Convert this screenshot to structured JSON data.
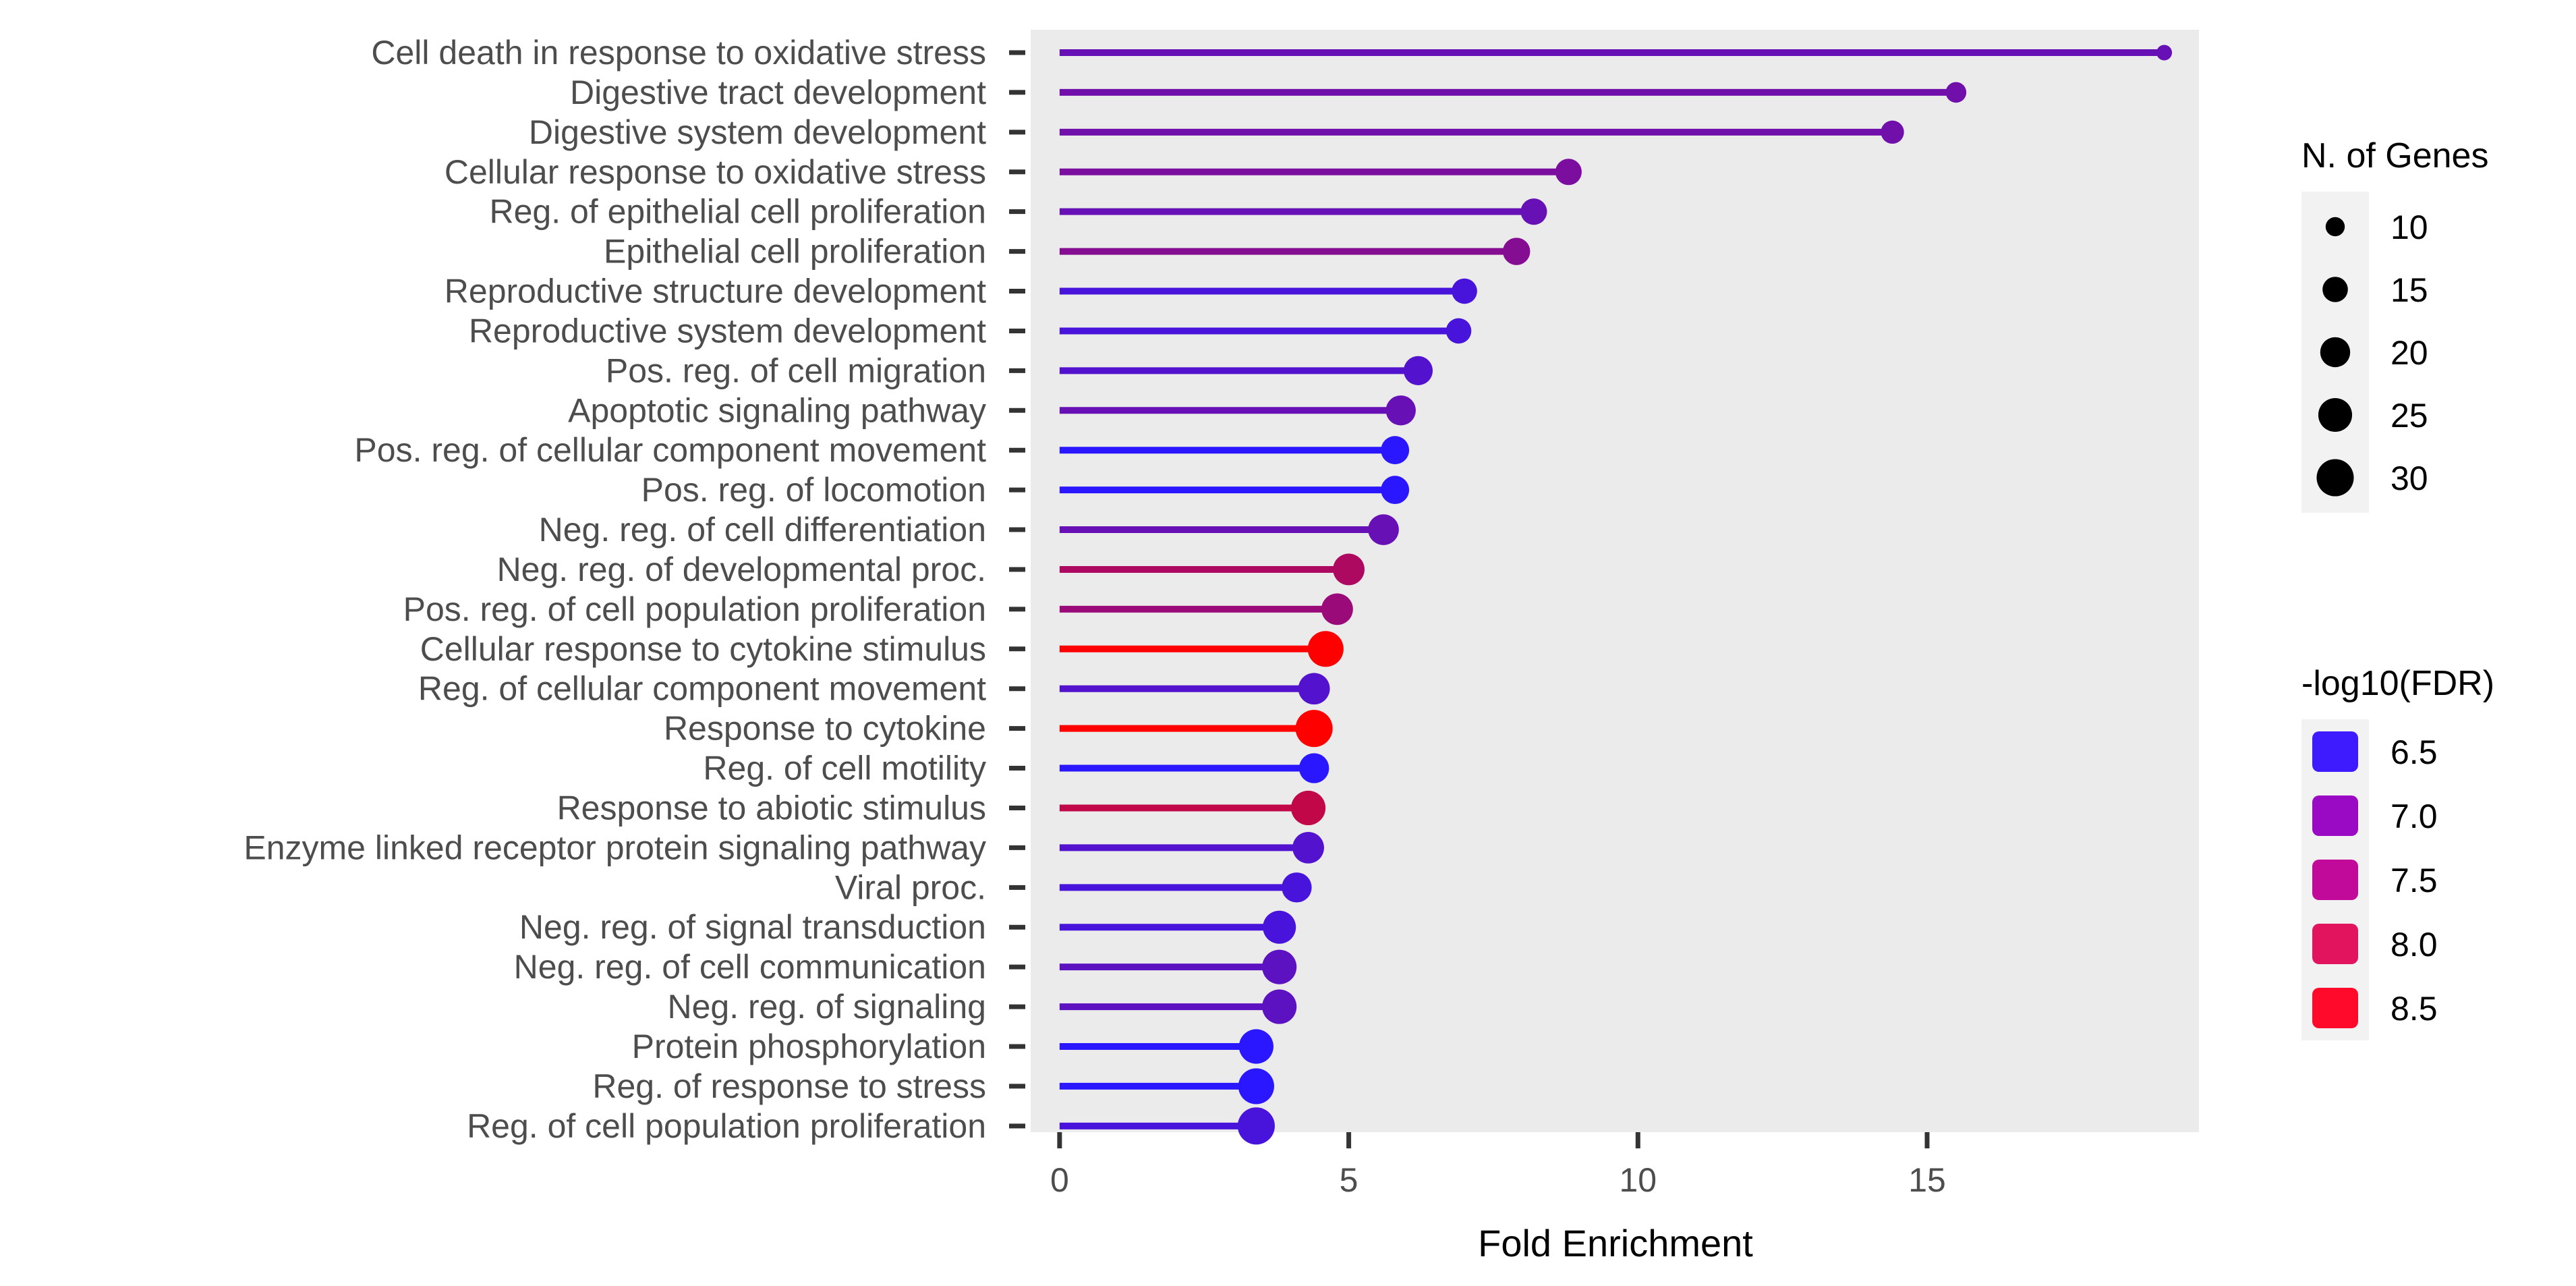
{
  "chart_data": {
    "type": "lollipop",
    "xlabel": "Fold Enrichment",
    "ylabel": "",
    "xlim": [
      -0.5,
      19.7
    ],
    "x_ticks": [
      0,
      5,
      10,
      15
    ],
    "grid": false,
    "panel_background": "#ebebeb",
    "legend_position": "right",
    "categories": [
      "Cell death in response to oxidative stress",
      "Digestive tract development",
      "Digestive system development",
      "Cellular response to oxidative stress",
      "Reg. of epithelial cell proliferation",
      "Epithelial cell proliferation",
      "Reproductive structure development",
      "Reproductive system development",
      "Pos. reg. of cell migration",
      "Apoptotic signaling pathway",
      "Pos. reg. of cellular component movement",
      "Pos. reg. of locomotion",
      "Neg. reg. of cell differentiation",
      "Neg. reg. of developmental proc.",
      "Pos. reg. of cell population proliferation",
      "Cellular response to cytokine stimulus",
      "Reg. of cellular component movement",
      "Response to cytokine",
      "Reg. of cell motility",
      "Response to abiotic stimulus",
      "Enzyme linked receptor protein signaling pathway",
      "Viral proc.",
      "Neg. reg. of signal transduction",
      "Neg. reg. of cell communication",
      "Neg. reg. of signaling",
      "Protein phosphorylation",
      "Reg. of response to stress",
      "Reg. of cell population proliferation"
    ],
    "fold_enrichment": [
      19.1,
      15.5,
      14.4,
      8.8,
      8.2,
      7.9,
      7.0,
      6.9,
      6.2,
      5.9,
      5.8,
      5.8,
      5.6,
      5.0,
      4.8,
      4.6,
      4.4,
      4.4,
      4.4,
      4.3,
      4.3,
      4.1,
      3.8,
      3.8,
      3.8,
      3.4,
      3.4,
      3.4
    ],
    "n_genes": [
      8,
      11,
      13,
      16,
      16,
      17,
      15,
      15,
      19,
      20,
      18,
      18,
      21,
      22,
      22,
      28,
      22,
      30,
      20,
      26,
      22,
      20,
      24,
      26,
      26,
      26,
      28,
      30
    ],
    "neg_log10_fdr": [
      7.1,
      7.2,
      7.2,
      7.3,
      7.1,
      7.4,
      6.8,
      6.8,
      6.9,
      7.1,
      6.5,
      6.5,
      7.1,
      7.8,
      7.6,
      8.6,
      6.9,
      8.6,
      6.5,
      8.0,
      6.9,
      6.8,
      6.8,
      7.0,
      7.0,
      6.5,
      6.5,
      6.8
    ],
    "size_legend": {
      "title": "N. of Genes",
      "breaks": [
        10,
        15,
        20,
        25,
        30
      ]
    },
    "color_legend": {
      "title": "-log10(FDR)",
      "breaks": [
        6.5,
        7.0,
        7.5,
        8.0,
        8.5
      ],
      "colors": [
        "#3d1aff",
        "#9a09c3",
        "#c20a9a",
        "#e3145e",
        "#ff0a2a"
      ]
    },
    "color_scale": {
      "low_value": 6.5,
      "high_value": 8.6,
      "low": "#2a17ff",
      "high": "#ff0000"
    }
  }
}
